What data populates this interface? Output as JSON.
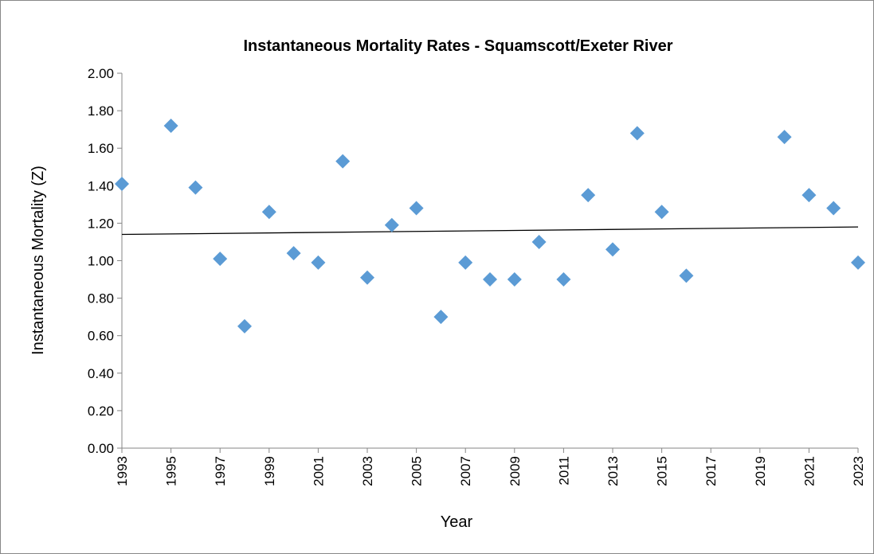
{
  "chart_data": {
    "type": "scatter",
    "title": "Instantaneous Mortality Rates - Squamscott/Exeter River",
    "x_label": "Year",
    "y_label": "Instantaneous Mortality (Z)",
    "series": [
      {
        "color": "#5b9bd5",
        "x": [
          1993,
          1995,
          1996,
          1997,
          1998,
          1999,
          2000,
          2001,
          2002,
          2003,
          2004,
          2005,
          2006,
          2007,
          2008,
          2009,
          2010,
          2011,
          2012,
          2013,
          2014,
          2015,
          2016,
          2020,
          2021,
          2022,
          2023
        ],
        "values": [
          1.41,
          1.72,
          1.39,
          1.01,
          0.65,
          1.26,
          1.04,
          0.99,
          1.53,
          0.91,
          1.19,
          1.28,
          0.7,
          0.99,
          0.9,
          0.9,
          1.1,
          0.9,
          1.35,
          1.06,
          1.68,
          1.26,
          0.92,
          1.66,
          1.35,
          1.28,
          0.99
        ]
      }
    ],
    "trendline": {
      "color": "#000000",
      "x": [
        1993,
        2023
      ],
      "values": [
        1.14,
        1.18
      ]
    },
    "xlim": [
      1993,
      2023
    ],
    "xticks": [
      1993,
      1995,
      1997,
      1999,
      2001,
      2003,
      2005,
      2007,
      2009,
      2011,
      2013,
      2015,
      2017,
      2019,
      2021,
      2023
    ],
    "ylim": [
      0,
      2
    ],
    "yticks": [
      {
        "value": 0,
        "label": "0.00"
      },
      {
        "value": 0.2,
        "label": "0.20"
      },
      {
        "value": 0.4,
        "label": "0.40"
      },
      {
        "value": 0.6,
        "label": "0.60"
      },
      {
        "value": 0.8,
        "label": "0.80"
      },
      {
        "value": 1.0,
        "label": "1.00"
      },
      {
        "value": 1.2,
        "label": "1.20"
      },
      {
        "value": 1.4,
        "label": "1.40"
      },
      {
        "value": 1.6,
        "label": "1.60"
      },
      {
        "value": 1.8,
        "label": "1.80"
      },
      {
        "value": 2.0,
        "label": "2.00"
      }
    ],
    "grid": false
  }
}
